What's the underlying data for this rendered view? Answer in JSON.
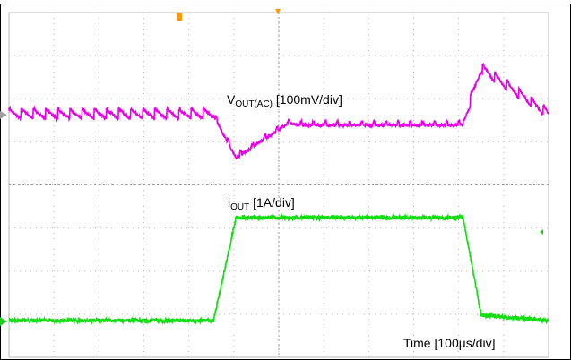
{
  "chart_data": {
    "type": "line",
    "title": "",
    "xlabel": "Time [100µs/div]",
    "ylabel": "",
    "grid": true,
    "grid_divisions": {
      "x": 12,
      "y": 8
    },
    "x_unit": "µs",
    "x": [
      0,
      80,
      200,
      455,
      505,
      620,
      650,
      1010,
      1050,
      1200
    ],
    "series": [
      {
        "name_main": "V",
        "name_sub": "OUT(AC)",
        "name_suffix": " [100mV/div]",
        "unit": "mV",
        "color": "#e600e6",
        "y": [
          0,
          0,
          0,
          0,
          -55,
          -10,
          -12,
          -12,
          60,
          0
        ]
      },
      {
        "name_main": "i",
        "name_sub": "OUT",
        "name_suffix": " [1A/div]",
        "unit": "A",
        "color": "#11dd11",
        "y": [
          0,
          0,
          0,
          0,
          1.9,
          1.9,
          1.9,
          1.9,
          0.1,
          0
        ]
      }
    ],
    "markers": {
      "top_trigger_color": "#ff9900",
      "channel1_marker_color": "#a0a0a0",
      "channel2_marker_color": "#22cc22"
    }
  }
}
